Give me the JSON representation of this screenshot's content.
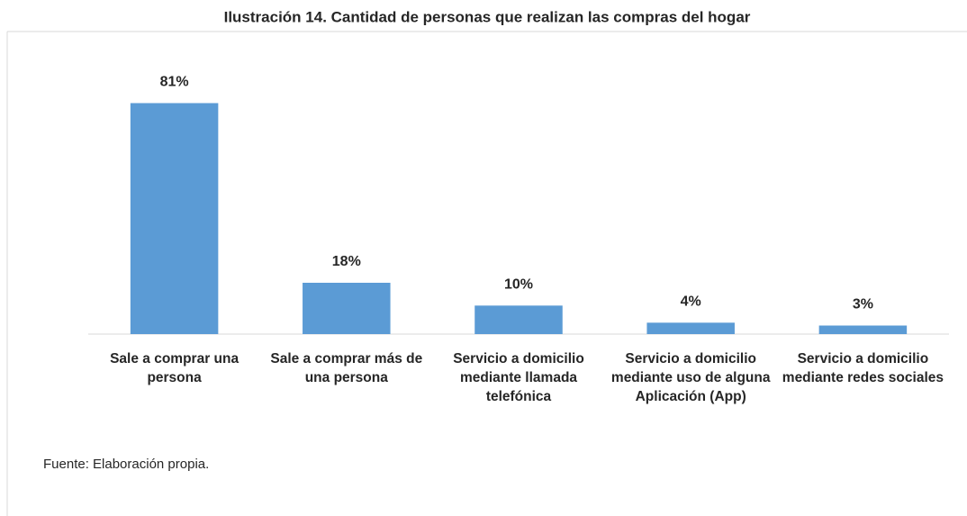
{
  "chart_data": {
    "type": "bar",
    "title": "Ilustración 14. Cantidad de personas que realizan las compras del hogar",
    "categories": [
      "Sale a comprar una persona",
      "Sale a comprar más de una persona",
      "Servicio a domicilio mediante llamada telefónica",
      "Servicio a domicilio mediante uso de alguna Aplicación (App)",
      "Servicio a domicilio mediante redes sociales"
    ],
    "values": [
      81,
      18,
      10,
      4,
      3
    ],
    "value_labels": [
      "81%",
      "18%",
      "10%",
      "4%",
      "3%"
    ],
    "color": "#5b9bd5",
    "ylim": [
      0,
      90
    ],
    "source": "Fuente: Elaboración propia."
  }
}
